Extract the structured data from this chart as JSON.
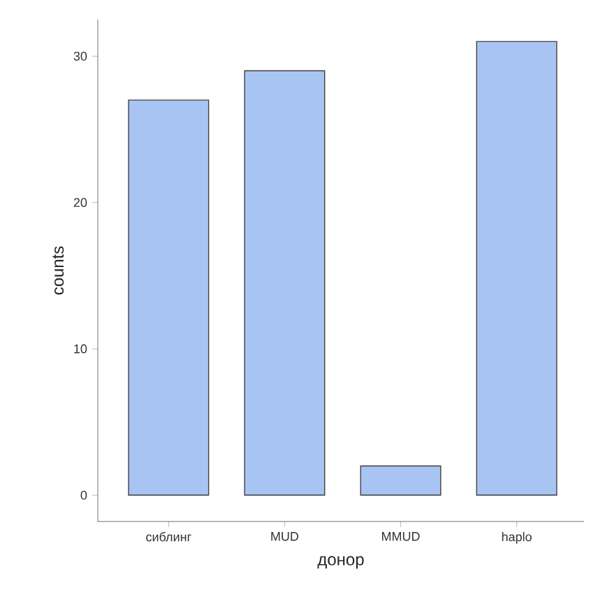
{
  "chart_data": {
    "type": "bar",
    "xlabel": "донор",
    "ylabel": "counts",
    "categories": [
      "сиблинг",
      "MUD",
      "MMUD",
      "haplo"
    ],
    "values": [
      27,
      29,
      2,
      31
    ],
    "color": "#a8c4f2",
    "ylim": [
      -1.8,
      32.5
    ],
    "yticks": [
      0,
      10,
      20,
      30
    ],
    "grid": false
  }
}
